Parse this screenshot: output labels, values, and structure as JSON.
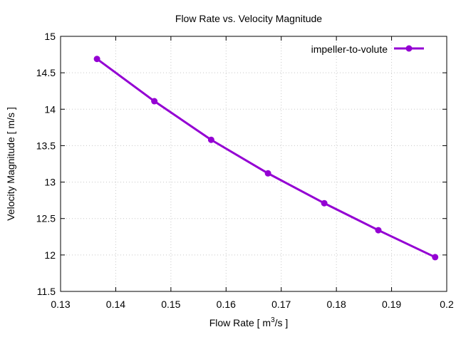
{
  "chart_data": {
    "type": "line",
    "title": "Flow Rate vs. Velocity Magnitude",
    "xlabel_main": "Flow Rate [ m",
    "xlabel_sup": "3",
    "xlabel_tail": "/s ]",
    "ylabel": "Velocity Magnitude [ m/s ]",
    "xlim": [
      0.13,
      0.2
    ],
    "ylim": [
      11.5,
      15
    ],
    "xticks": [
      0.13,
      0.14,
      0.15,
      0.16,
      0.17,
      0.18,
      0.19,
      0.2
    ],
    "yticks": [
      11.5,
      12,
      12.5,
      13,
      13.5,
      14,
      14.5,
      15
    ],
    "xtick_labels": [
      "0.13",
      "0.14",
      "0.15",
      "0.16",
      "0.17",
      "0.18",
      "0.19",
      "0.2"
    ],
    "ytick_labels": [
      "11.5",
      "12",
      "12.5",
      "13",
      "13.5",
      "14",
      "14.5",
      "15"
    ],
    "grid": true,
    "legend_position": "top-right",
    "series": [
      {
        "name": "impeller-to-volute",
        "color": "#9400d3",
        "x": [
          0.1366,
          0.147,
          0.1573,
          0.1676,
          0.1778,
          0.1876,
          0.1979
        ],
        "y": [
          14.69,
          14.11,
          13.58,
          13.12,
          12.71,
          12.34,
          11.97
        ]
      }
    ]
  }
}
